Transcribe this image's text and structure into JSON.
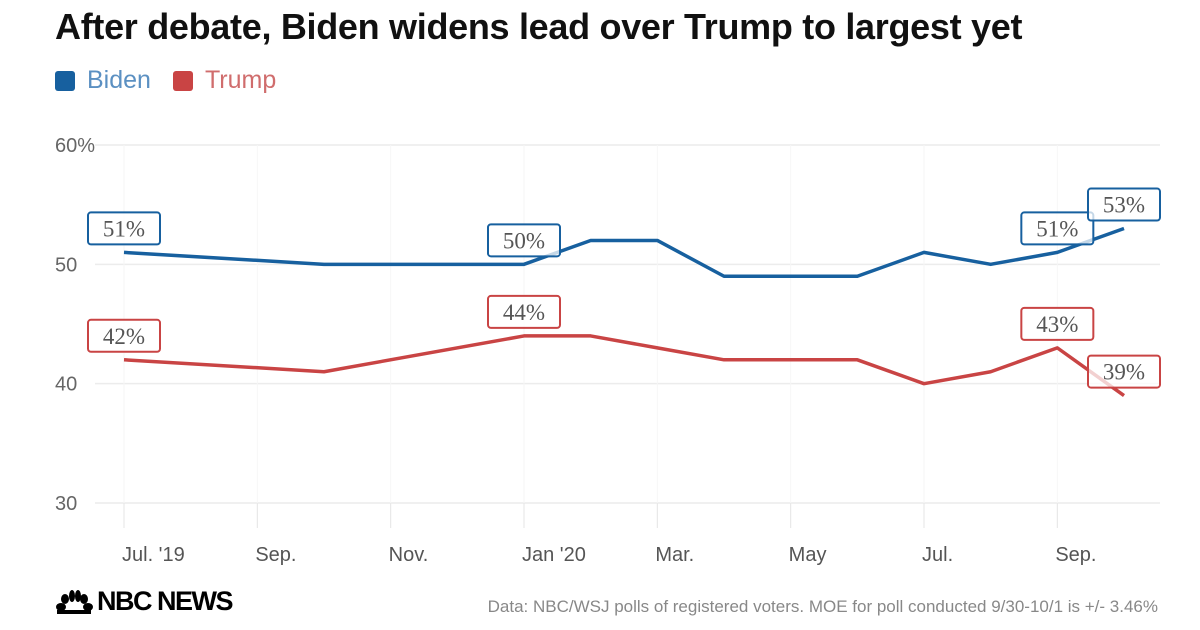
{
  "chart_data": {
    "type": "line",
    "title": "After debate, Biden widens lead over Trump to largest yet",
    "x": [
      "2019-07",
      "2019-10",
      "2020-01",
      "2020-02",
      "2020-03",
      "2020-04",
      "2020-06",
      "2020-07",
      "2020-08",
      "2020-09",
      "2020-10"
    ],
    "series": [
      {
        "name": "Biden",
        "color": "#17609f",
        "legend_text_color": "#5b90c2",
        "values": [
          51,
          50,
          50,
          52,
          52,
          49,
          49,
          51,
          50,
          51,
          53
        ],
        "labeled": [
          0,
          2,
          9,
          10
        ]
      },
      {
        "name": "Trump",
        "color": "#c94444",
        "legend_text_color": "#d06d6d",
        "values": [
          42,
          41,
          44,
          44,
          43,
          42,
          42,
          40,
          41,
          43,
          39
        ],
        "labeled": [
          0,
          2,
          9,
          10
        ]
      }
    ],
    "data_labels": {
      "Biden": [
        "51%",
        "50%",
        "51%",
        "53%"
      ],
      "Trump": [
        "42%",
        "44%",
        "43%",
        "39%"
      ]
    },
    "ylim": [
      30,
      60
    ],
    "yticks": [
      60,
      50,
      40,
      30
    ],
    "ytick_labels": [
      "60%",
      "50",
      "40",
      "30"
    ],
    "xticks": [
      "2019-07",
      "2019-09",
      "2019-11",
      "2020-01",
      "2020-03",
      "2020-05",
      "2020-07",
      "2020-09"
    ],
    "xtick_labels": [
      "Jul. '19",
      "Sep.",
      "Nov.",
      "Jan '20",
      "Mar.",
      "May",
      "Jul.",
      "Sep."
    ],
    "xlim": [
      "2019-07",
      "2020-10"
    ],
    "grid": true,
    "legend_placement": "top-left",
    "xlabel": "",
    "ylabel": ""
  },
  "footer": {
    "logo_text": "NBC NEWS",
    "source": "Data: NBC/WSJ polls of registered voters. MOE for poll conducted 9/30-10/1 is +/- 3.46%"
  }
}
